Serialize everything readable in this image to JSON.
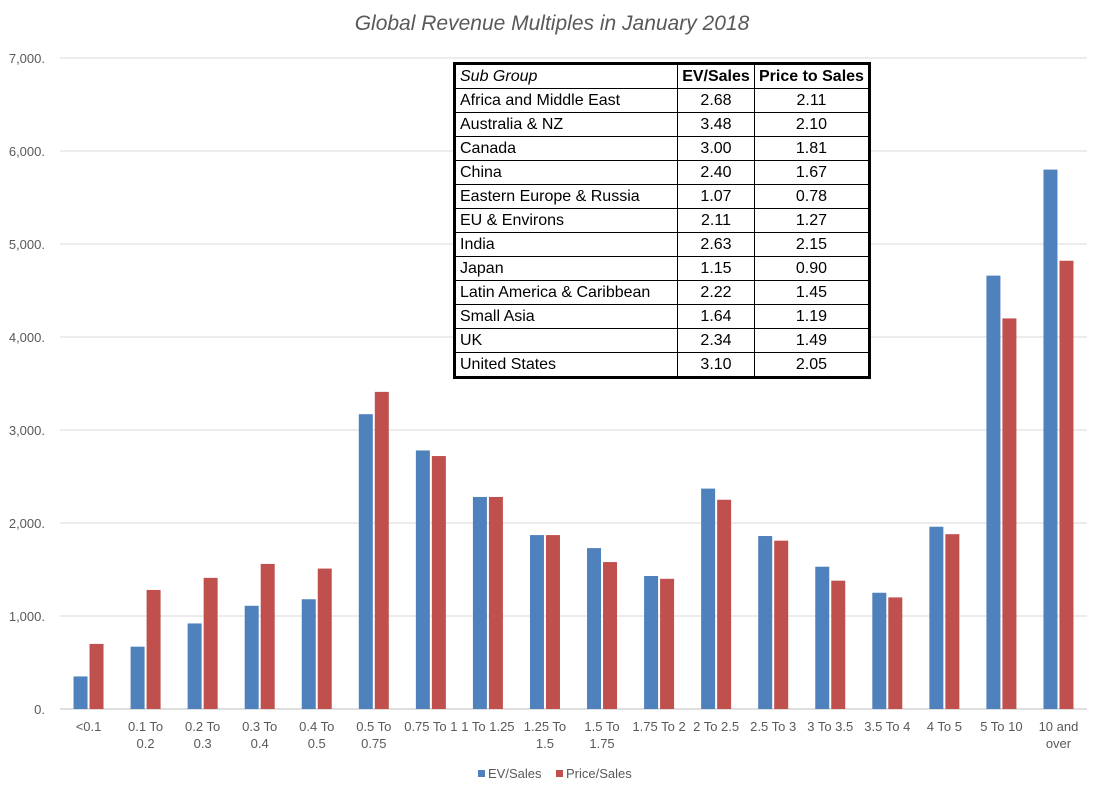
{
  "chart_data": {
    "type": "bar",
    "title": "Global Revenue Multiples in January 2018",
    "xlabel": "",
    "ylabel": "",
    "ylim": [
      0,
      7000
    ],
    "yticks": [
      0,
      1000,
      2000,
      3000,
      4000,
      5000,
      6000,
      7000
    ],
    "ytick_labels": [
      "0.",
      "1,000.",
      "2,000.",
      "3,000.",
      "4,000.",
      "5,000.",
      "6,000.",
      "7,000."
    ],
    "grid": true,
    "legend_position": "bottom",
    "categories": [
      "<0.1",
      "0.1 To 0.2",
      "0.2 To 0.3",
      "0.3 To 0.4",
      "0.4 To 0.5",
      "0.5 To 0.75",
      "0.75 To 1",
      "1 To 1.25",
      "1.25 To 1.5",
      "1.5 To 1.75",
      "1.75 To 2",
      "2 To 2.5",
      "2.5 To 3",
      "3 To 3.5",
      "3.5 To 4",
      "4 To 5",
      "5 To 10",
      "10 and over"
    ],
    "category_lines": [
      [
        "<0.1"
      ],
      [
        "0.1 To",
        "0.2"
      ],
      [
        "0.2 To",
        "0.3"
      ],
      [
        "0.3 To",
        "0.4"
      ],
      [
        "0.4 To",
        "0.5"
      ],
      [
        "0.5 To",
        "0.75"
      ],
      [
        "0.75 To 1"
      ],
      [
        "1 To 1.25"
      ],
      [
        "1.25 To",
        "1.5"
      ],
      [
        "1.5 To",
        "1.75"
      ],
      [
        "1.75 To 2"
      ],
      [
        "2 To 2.5"
      ],
      [
        "2.5 To 3"
      ],
      [
        "3 To 3.5"
      ],
      [
        "3.5 To 4"
      ],
      [
        "4 To 5"
      ],
      [
        "5 To 10"
      ],
      [
        "10 and",
        "over"
      ]
    ],
    "series": [
      {
        "name": "EV/Sales",
        "color": "#4f81bd",
        "values": [
          350,
          670,
          920,
          1110,
          1180,
          3170,
          2780,
          2280,
          1870,
          1730,
          1430,
          2370,
          1860,
          1530,
          1250,
          1960,
          4660,
          5800
        ]
      },
      {
        "name": "Price/Sales",
        "color": "#c0504d",
        "values": [
          700,
          1280,
          1410,
          1560,
          1510,
          3410,
          2720,
          2280,
          1870,
          1580,
          1400,
          2250,
          1810,
          1380,
          1200,
          1880,
          4200,
          4820
        ]
      }
    ]
  },
  "table": {
    "headers": [
      "Sub Group",
      "EV/Sales",
      "Price to Sales"
    ],
    "rows": [
      [
        "Africa and Middle East",
        "2.68",
        "2.11"
      ],
      [
        "Australia & NZ",
        "3.48",
        "2.10"
      ],
      [
        "Canada",
        "3.00",
        "1.81"
      ],
      [
        "China",
        "2.40",
        "1.67"
      ],
      [
        "Eastern Europe & Russia",
        "1.07",
        "0.78"
      ],
      [
        "EU & Environs",
        "2.11",
        "1.27"
      ],
      [
        "India",
        "2.63",
        "2.15"
      ],
      [
        "Japan",
        "1.15",
        "0.90"
      ],
      [
        "Latin America & Caribbean",
        "2.22",
        "1.45"
      ],
      [
        "Small Asia",
        "1.64",
        "1.19"
      ],
      [
        "UK",
        "2.34",
        "1.49"
      ],
      [
        "United States",
        "3.10",
        "2.05"
      ]
    ]
  }
}
